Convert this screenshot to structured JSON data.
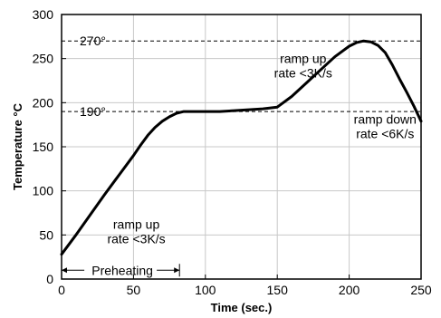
{
  "chart_data": {
    "type": "line",
    "xlabel": "Time (sec.)",
    "ylabel": "Temperature °C",
    "xlim": [
      0,
      250
    ],
    "ylim": [
      0,
      300
    ],
    "x_ticks": [
      0,
      50,
      100,
      150,
      200,
      250
    ],
    "y_ticks": [
      0,
      50,
      100,
      150,
      200,
      250,
      300
    ],
    "grid": true,
    "series": [
      {
        "values": [
          [
            0,
            28
          ],
          [
            10,
            50
          ],
          [
            20,
            73
          ],
          [
            30,
            96
          ],
          [
            40,
            118
          ],
          [
            50,
            140
          ],
          [
            55,
            152
          ],
          [
            60,
            163
          ],
          [
            65,
            172
          ],
          [
            70,
            179
          ],
          [
            75,
            184
          ],
          [
            80,
            188
          ],
          [
            85,
            190
          ],
          [
            90,
            190
          ],
          [
            100,
            190
          ],
          [
            110,
            190
          ],
          [
            120,
            191
          ],
          [
            130,
            192
          ],
          [
            140,
            193
          ],
          [
            150,
            195
          ],
          [
            160,
            207
          ],
          [
            170,
            222
          ],
          [
            180,
            237
          ],
          [
            190,
            252
          ],
          [
            200,
            264
          ],
          [
            205,
            268
          ],
          [
            210,
            270
          ],
          [
            215,
            269
          ],
          [
            220,
            265
          ],
          [
            225,
            257
          ],
          [
            230,
            243
          ],
          [
            235,
            227
          ],
          [
            240,
            212
          ],
          [
            245,
            196
          ],
          [
            250,
            179
          ]
        ]
      }
    ],
    "reference_lines": [
      {
        "y": 270,
        "label": "270°"
      },
      {
        "y": 190,
        "label": "190°"
      }
    ],
    "annotations": [
      {
        "lines": [
          "ramp up",
          "rate <3K/s"
        ],
        "x": 52,
        "y": 57
      },
      {
        "lines": [
          "ramp up",
          "rate <3K/s"
        ],
        "x": 168,
        "y": 245
      },
      {
        "lines": [
          "ramp down",
          "rate <6K/s"
        ],
        "x": 225,
        "y": 176
      }
    ],
    "span_annotation": {
      "label": "Preheating",
      "x_start": 0,
      "x_end": 82,
      "y": 10
    }
  }
}
